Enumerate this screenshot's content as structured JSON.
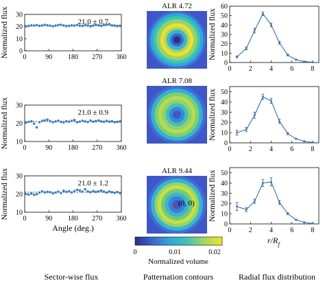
{
  "colorbar": {
    "label": "Normalized volume",
    "ticks": [
      "0",
      "0.01",
      "0.02"
    ],
    "min": 0,
    "max": 0.022
  },
  "map_label": "(0, 0)",
  "column_titles": [
    "Sector-wise flux",
    "Patternation contours",
    "Radial flux distribution"
  ],
  "chart_data": [
    {
      "id": "sector-1",
      "type": "scatter",
      "ylabel": "Normalized flux",
      "xlabel": "",
      "xticks": [
        0,
        90,
        180,
        270,
        360
      ],
      "yticks": [
        0,
        10,
        20,
        30
      ],
      "xlim": [
        0,
        360
      ],
      "ylim": [
        0,
        30
      ],
      "annotation": "21.0 ± 0.7",
      "mean": 21.0,
      "x": [
        5,
        15,
        25,
        35,
        45,
        55,
        65,
        75,
        85,
        95,
        105,
        115,
        125,
        135,
        145,
        155,
        165,
        175,
        185,
        195,
        205,
        215,
        225,
        235,
        245,
        255,
        265,
        275,
        285,
        295,
        305,
        315,
        325,
        335,
        345,
        355
      ],
      "y": [
        20.2,
        20.5,
        21.0,
        20.8,
        21.2,
        20.6,
        20.9,
        21.4,
        21.0,
        20.7,
        20.3,
        20.8,
        21.2,
        21.5,
        20.9,
        20.4,
        20.6,
        21.0,
        20.8,
        21.3,
        20.7,
        20.5,
        21.1,
        20.9,
        20.2,
        20.8,
        21.4,
        21.0,
        20.6,
        21.2,
        21.5,
        22.1,
        21.0,
        20.8,
        20.4,
        20.6
      ]
    },
    {
      "id": "sector-2",
      "type": "scatter",
      "ylabel": "Normalized flux",
      "xlabel": "",
      "xticks": [
        0,
        90,
        180,
        270,
        360
      ],
      "yticks": [
        10,
        20,
        30
      ],
      "xlim": [
        0,
        360
      ],
      "ylim": [
        10,
        30
      ],
      "annotation": "21.0 ± 0.9",
      "mean": 21.0,
      "x": [
        5,
        15,
        25,
        35,
        45,
        55,
        65,
        75,
        85,
        95,
        105,
        115,
        125,
        135,
        145,
        155,
        165,
        175,
        185,
        195,
        205,
        215,
        225,
        235,
        245,
        255,
        265,
        275,
        285,
        295,
        305,
        315,
        325,
        335,
        345,
        355
      ],
      "y": [
        20.4,
        20.8,
        21.1,
        19.8,
        17.8,
        20.6,
        21.3,
        21.6,
        22.0,
        21.2,
        20.6,
        21.0,
        21.4,
        20.8,
        20.5,
        21.1,
        20.9,
        21.3,
        21.8,
        20.6,
        20.9,
        21.4,
        21.0,
        20.7,
        21.5,
        20.9,
        21.2,
        21.6,
        21.0,
        20.8,
        21.3,
        20.9,
        21.1,
        20.6,
        20.8,
        21.0
      ]
    },
    {
      "id": "sector-3",
      "type": "scatter",
      "ylabel": "Normalized flux",
      "xlabel": "Angle (deg.)",
      "xticks": [
        0,
        90,
        180,
        270,
        360
      ],
      "yticks": [
        10,
        20,
        30
      ],
      "xlim": [
        0,
        360
      ],
      "ylim": [
        10,
        30
      ],
      "annotation": "21.0 ± 1.2",
      "mean": 21.0,
      "x": [
        5,
        15,
        25,
        35,
        45,
        55,
        65,
        75,
        85,
        95,
        105,
        115,
        125,
        135,
        145,
        155,
        165,
        175,
        185,
        195,
        205,
        215,
        225,
        235,
        245,
        255,
        265,
        275,
        285,
        295,
        305,
        315,
        325,
        335,
        345,
        355
      ],
      "y": [
        20.0,
        19.7,
        20.3,
        19.6,
        19.9,
        20.8,
        21.5,
        20.9,
        21.2,
        21.0,
        20.4,
        20.8,
        21.3,
        20.6,
        21.8,
        21.2,
        21.5,
        20.9,
        21.6,
        22.3,
        22.0,
        21.3,
        22.6,
        21.4,
        21.0,
        21.6,
        21.2,
        21.5,
        21.9,
        21.3,
        20.8,
        21.4,
        21.0,
        20.7,
        21.1,
        20.5
      ]
    },
    {
      "id": "map-1",
      "type": "heatmap",
      "title": "ALR 4.72",
      "rings": [
        {
          "r": 0.96,
          "color": "#3f6fd2"
        },
        {
          "r": 0.88,
          "color": "#31a7d8"
        },
        {
          "r": 0.78,
          "color": "#3fc4b7"
        },
        {
          "r": 0.68,
          "color": "#8fd66a"
        },
        {
          "r": 0.55,
          "color": "#f3dd31"
        },
        {
          "r": 0.43,
          "color": "#a7d85e"
        },
        {
          "r": 0.34,
          "color": "#3bb4d0"
        },
        {
          "r": 0.22,
          "color": "#3c66cc"
        },
        {
          "r": 0.12,
          "color": "#2b2f8a"
        }
      ]
    },
    {
      "id": "map-2",
      "type": "heatmap",
      "title": "ALR 7.08",
      "rings": [
        {
          "r": 0.96,
          "color": "#3f6fd2"
        },
        {
          "r": 0.86,
          "color": "#36b0d4"
        },
        {
          "r": 0.74,
          "color": "#7dd06e"
        },
        {
          "r": 0.62,
          "color": "#b5db55"
        },
        {
          "r": 0.5,
          "color": "#8ed46a"
        },
        {
          "r": 0.38,
          "color": "#44bfbd"
        },
        {
          "r": 0.26,
          "color": "#3a86d8"
        },
        {
          "r": 0.14,
          "color": "#3a5cc6"
        }
      ]
    },
    {
      "id": "map-3",
      "type": "heatmap",
      "title": "ALR 9.44",
      "rings": [
        {
          "r": 0.96,
          "color": "#3f6fd2"
        },
        {
          "r": 0.86,
          "color": "#3ab2d2"
        },
        {
          "r": 0.74,
          "color": "#92d666"
        },
        {
          "r": 0.64,
          "color": "#c7df48"
        },
        {
          "r": 0.52,
          "color": "#6fcc78"
        },
        {
          "r": 0.4,
          "color": "#3fb3cd"
        },
        {
          "r": 0.28,
          "color": "#3a80d8"
        },
        {
          "r": 0.15,
          "color": "#3a5ac4"
        }
      ]
    },
    {
      "id": "radial-1",
      "type": "line",
      "ylabel": "Normalized flux",
      "xlabel": "",
      "xticks": [
        0,
        2,
        4,
        6,
        8
      ],
      "yticks": [
        0,
        10,
        20,
        30,
        40,
        50,
        60
      ],
      "xlim": [
        0,
        8.6
      ],
      "ylim": [
        0,
        60
      ],
      "x": [
        0.7,
        1.6,
        2.4,
        3.2,
        4.0,
        4.8,
        5.6,
        6.4,
        7.2,
        8.0
      ],
      "y": [
        6,
        15,
        34,
        52,
        40,
        21,
        8,
        3,
        1,
        0.3
      ],
      "err": [
        1,
        1.5,
        2.5,
        2,
        2,
        1.5,
        1,
        0.5,
        0.3,
        0.2
      ]
    },
    {
      "id": "radial-2",
      "type": "line",
      "ylabel": "Normalized flux",
      "xlabel": "",
      "xticks": [
        0,
        2,
        4,
        6,
        8
      ],
      "yticks": [
        0,
        10,
        20,
        30,
        40,
        50
      ],
      "xlim": [
        0,
        8.6
      ],
      "ylim": [
        0,
        55
      ],
      "x": [
        0.7,
        1.6,
        2.4,
        3.2,
        4.0,
        4.8,
        5.6,
        6.4,
        7.2,
        8.0
      ],
      "y": [
        10,
        13,
        27,
        45,
        41,
        21,
        9,
        4,
        1.5,
        0.5
      ],
      "err": [
        2.5,
        2,
        3,
        2.5,
        2.5,
        2,
        1,
        0.5,
        0.3,
        0.2
      ]
    },
    {
      "id": "radial-3",
      "type": "line",
      "ylabel": "Normalized flux",
      "xlabel": "r/R_f",
      "xticks": [
        0,
        2,
        4,
        6,
        8
      ],
      "yticks": [
        0,
        10,
        20,
        30,
        40,
        50
      ],
      "xlim": [
        0,
        8.6
      ],
      "ylim": [
        0,
        55
      ],
      "x": [
        0.7,
        1.6,
        2.4,
        3.2,
        4.0,
        4.8,
        5.6,
        6.4,
        7.2,
        8.0
      ],
      "y": [
        17,
        14,
        22,
        40,
        41,
        21,
        10,
        4,
        1.5,
        0.5
      ],
      "err": [
        4,
        2,
        2,
        3.5,
        4,
        2,
        1,
        0.5,
        0.3,
        0.2
      ]
    }
  ]
}
